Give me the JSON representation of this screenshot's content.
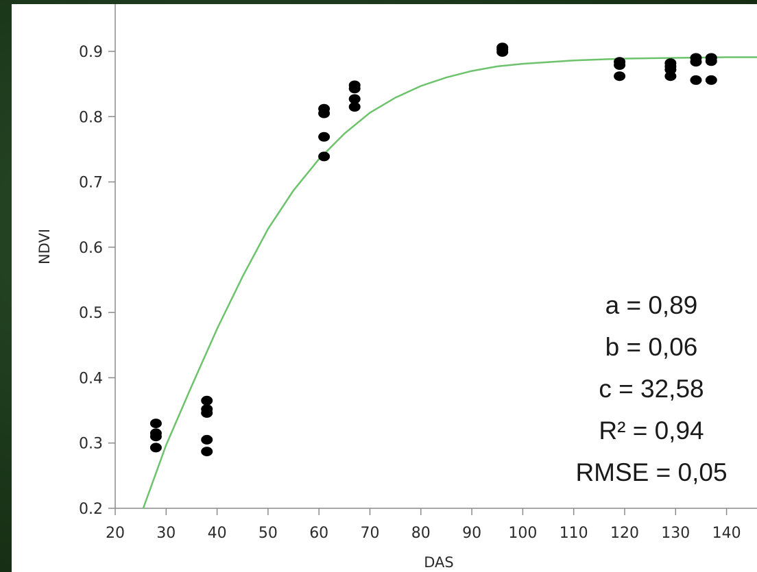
{
  "chart_data": {
    "type": "scatter",
    "xlabel": "DAS",
    "ylabel": "NDVI",
    "xlim": [
      20,
      147
    ],
    "ylim": [
      0.2,
      0.97
    ],
    "xticks": [
      "20",
      "30",
      "40",
      "50",
      "60",
      "70",
      "80",
      "90",
      "100",
      "110",
      "120",
      "130",
      "140"
    ],
    "yticks": [
      "0.2",
      "0.3",
      "0.4",
      "0.5",
      "0.6",
      "0.7",
      "0.8",
      "0.9"
    ],
    "grid": false,
    "points": [
      {
        "x": 28,
        "y": 0.33
      },
      {
        "x": 28,
        "y": 0.315
      },
      {
        "x": 28,
        "y": 0.31
      },
      {
        "x": 28,
        "y": 0.293
      },
      {
        "x": 38,
        "y": 0.365
      },
      {
        "x": 38,
        "y": 0.352
      },
      {
        "x": 38,
        "y": 0.346
      },
      {
        "x": 38,
        "y": 0.305
      },
      {
        "x": 38,
        "y": 0.287
      },
      {
        "x": 61,
        "y": 0.812
      },
      {
        "x": 61,
        "y": 0.805
      },
      {
        "x": 61,
        "y": 0.769
      },
      {
        "x": 61,
        "y": 0.739
      },
      {
        "x": 67,
        "y": 0.848
      },
      {
        "x": 67,
        "y": 0.843
      },
      {
        "x": 67,
        "y": 0.827
      },
      {
        "x": 67,
        "y": 0.815
      },
      {
        "x": 96,
        "y": 0.906
      },
      {
        "x": 96,
        "y": 0.903
      },
      {
        "x": 96,
        "y": 0.899
      },
      {
        "x": 119,
        "y": 0.884
      },
      {
        "x": 119,
        "y": 0.879
      },
      {
        "x": 119,
        "y": 0.862
      },
      {
        "x": 129,
        "y": 0.882
      },
      {
        "x": 129,
        "y": 0.877
      },
      {
        "x": 129,
        "y": 0.872
      },
      {
        "x": 129,
        "y": 0.862
      },
      {
        "x": 134,
        "y": 0.89
      },
      {
        "x": 134,
        "y": 0.884
      },
      {
        "x": 134,
        "y": 0.856
      },
      {
        "x": 137,
        "y": 0.89
      },
      {
        "x": 137,
        "y": 0.885
      },
      {
        "x": 137,
        "y": 0.856
      }
    ],
    "fit_curve": {
      "x": [
        25.5,
        30,
        35,
        40,
        45,
        50,
        55,
        60,
        65,
        70,
        75,
        80,
        85,
        90,
        95,
        100,
        110,
        120,
        130,
        140,
        147
      ],
      "y": [
        0.2,
        0.297,
        0.387,
        0.475,
        0.555,
        0.628,
        0.687,
        0.735,
        0.774,
        0.806,
        0.829,
        0.847,
        0.86,
        0.87,
        0.877,
        0.881,
        0.886,
        0.889,
        0.89,
        0.891,
        0.891
      ],
      "color": "#6cc36c"
    },
    "point_color": "#000000",
    "annotations": [
      "a = 0,89",
      "b = 0,06",
      "c = 32,58",
      "R² = 0,94",
      "RMSE = 0,05"
    ]
  }
}
